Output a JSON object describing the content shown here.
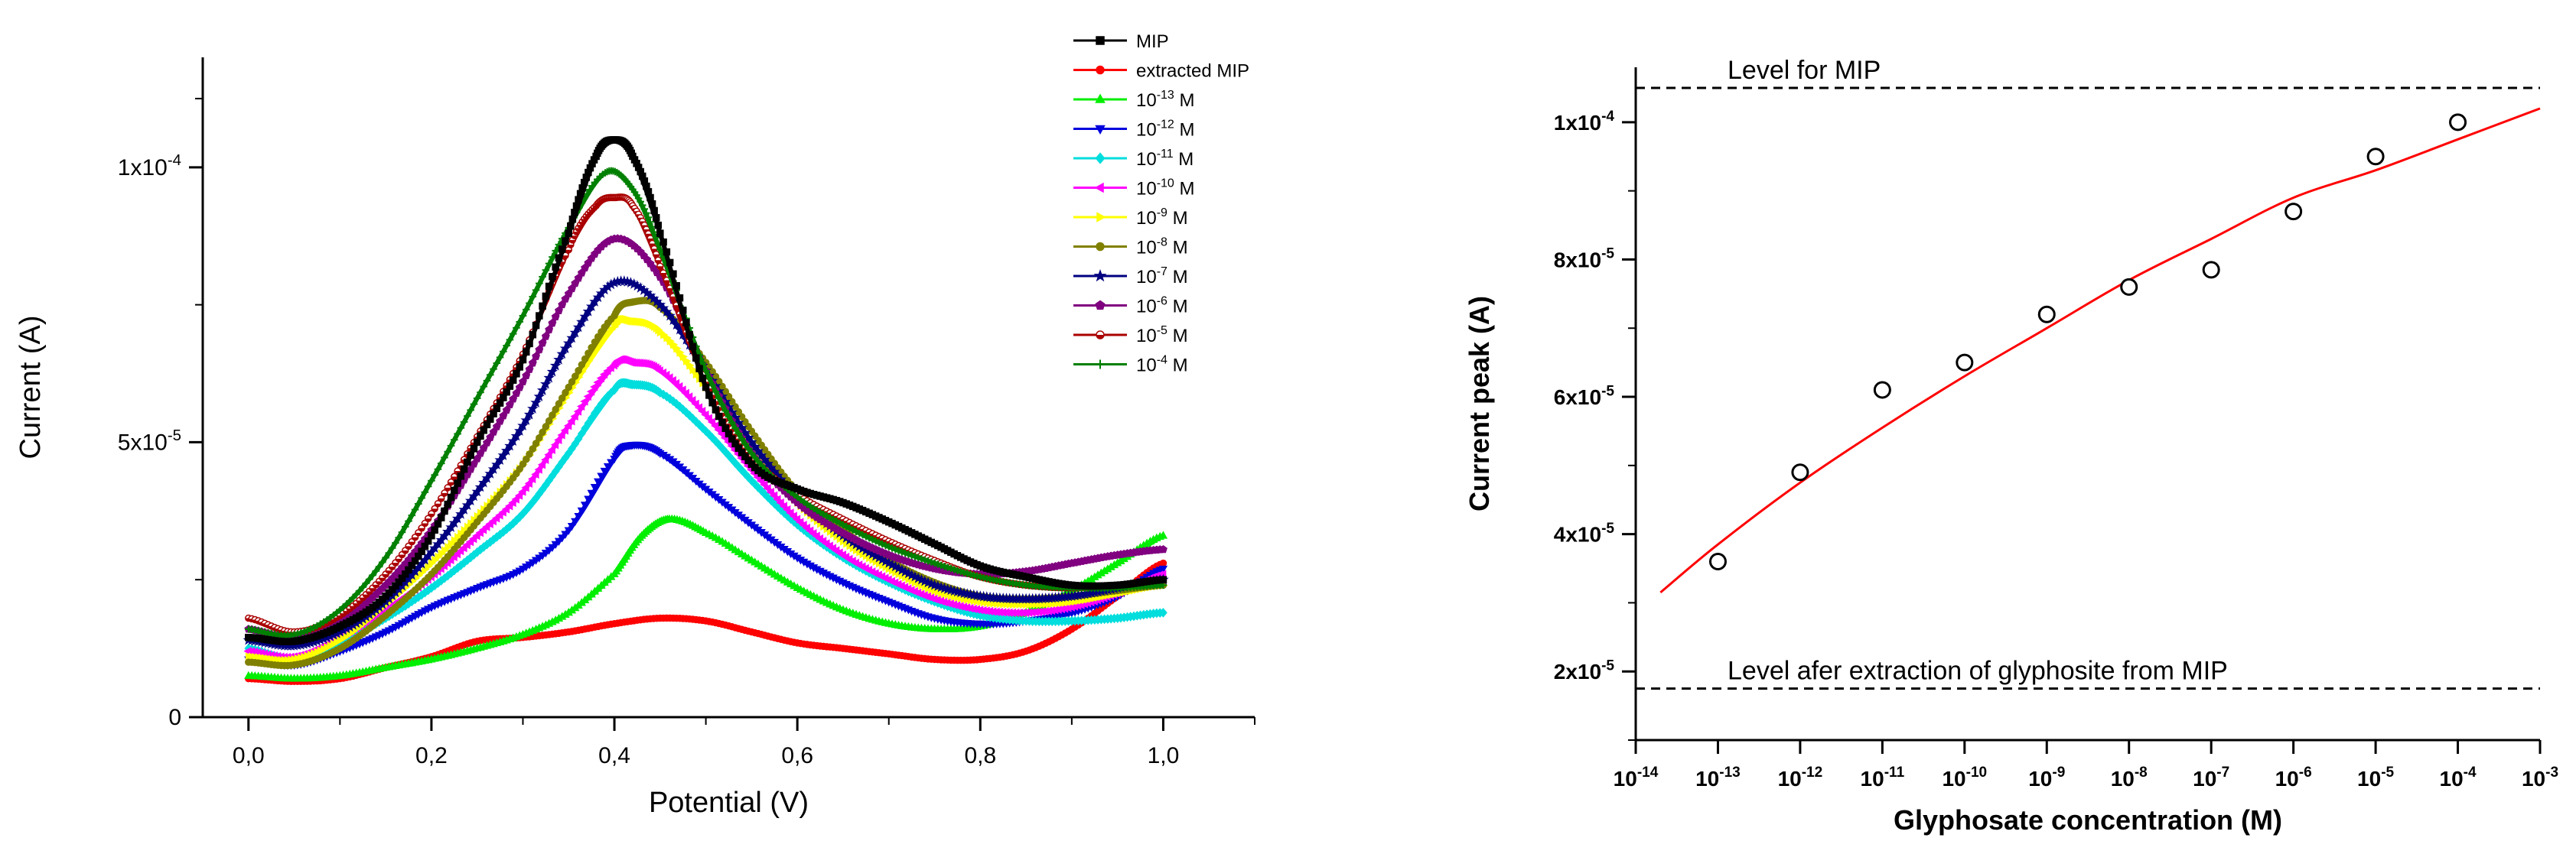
{
  "chart_data": [
    {
      "type": "line",
      "title": "",
      "xlabel": "Potential (V)",
      "ylabel": "Current (A)",
      "xlim": [
        -0.05,
        1.1
      ],
      "ylim": [
        0,
        0.00012
      ],
      "x_ticks": [
        {
          "value": 0.0,
          "label": "0,0"
        },
        {
          "value": 0.2,
          "label": "0,2"
        },
        {
          "value": 0.4,
          "label": "0,4"
        },
        {
          "value": 0.6,
          "label": "0,6"
        },
        {
          "value": 0.8,
          "label": "0,8"
        },
        {
          "value": 1.0,
          "label": "1,0"
        }
      ],
      "y_ticks": [
        {
          "value": 0,
          "label": "0"
        },
        {
          "value": 5e-05,
          "label": "5x10",
          "exp": "-5"
        },
        {
          "value": 0.0001,
          "label": "1x10",
          "exp": "-4"
        }
      ],
      "grid": false,
      "legend_position": "top-right",
      "series": [
        {
          "name": "MIP",
          "color": "#000000",
          "marker": "square",
          "x": [
            0.0,
            0.05,
            0.1,
            0.15,
            0.2,
            0.25,
            0.3,
            0.35,
            0.38,
            0.4,
            0.42,
            0.45,
            0.5,
            0.55,
            0.6,
            0.65,
            0.7,
            0.75,
            0.8,
            0.85,
            0.9,
            0.95,
            1.0
          ],
          "y": [
            1.45e-05,
            1.38e-05,
            1.65e-05,
            2.2e-05,
            3.3e-05,
            5e-05,
            6.5e-05,
            8.8e-05,
            0.000102,
            0.000105,
            0.000102,
            8.8e-05,
            6e-05,
            4.6e-05,
            4.15e-05,
            3.9e-05,
            3.55e-05,
            3.15e-05,
            2.75e-05,
            2.55e-05,
            2.4e-05,
            2.4e-05,
            2.5e-05
          ]
        },
        {
          "name": "extracted MIP",
          "color": "#ff0000",
          "marker": "circle",
          "x": [
            0.0,
            0.05,
            0.1,
            0.15,
            0.2,
            0.25,
            0.3,
            0.35,
            0.4,
            0.45,
            0.5,
            0.55,
            0.6,
            0.65,
            0.7,
            0.75,
            0.8,
            0.85,
            0.9,
            0.95,
            1.0
          ],
          "y": [
            7e-06,
            6.5e-06,
            7e-06,
            9e-06,
            1.1e-05,
            1.38e-05,
            1.45e-05,
            1.55e-05,
            1.7e-05,
            1.8e-05,
            1.75e-05,
            1.55e-05,
            1.35e-05,
            1.25e-05,
            1.15e-05,
            1.05e-05,
            1.05e-05,
            1.2e-05,
            1.6e-05,
            2.2e-05,
            2.8e-05
          ]
        },
        {
          "name": "10-13 M",
          "color": "#00ee00",
          "marker": "triangle-up",
          "x": [
            0.0,
            0.05,
            0.1,
            0.15,
            0.2,
            0.25,
            0.3,
            0.35,
            0.4,
            0.43,
            0.46,
            0.5,
            0.55,
            0.6,
            0.65,
            0.7,
            0.75,
            0.8,
            0.85,
            0.9,
            0.95,
            1.0
          ],
          "y": [
            7.5e-06,
            7e-06,
            7.5e-06,
            9e-06,
            1.05e-05,
            1.25e-05,
            1.5e-05,
            1.9e-05,
            2.6e-05,
            3.3e-05,
            3.6e-05,
            3.35e-05,
            2.85e-05,
            2.35e-05,
            1.95e-05,
            1.7e-05,
            1.6e-05,
            1.65e-05,
            1.9e-05,
            2.3e-05,
            2.8e-05,
            3.3e-05
          ]
        },
        {
          "name": "10-12 M",
          "color": "#0000dd",
          "marker": "triangle-down",
          "x": [
            0.0,
            0.05,
            0.1,
            0.15,
            0.2,
            0.25,
            0.3,
            0.35,
            0.4,
            0.42,
            0.45,
            0.5,
            0.55,
            0.6,
            0.65,
            0.7,
            0.75,
            0.8,
            0.85,
            0.9,
            0.95,
            1.0
          ],
          "y": [
            1.05e-05,
            9.5e-06,
            1.2e-05,
            1.55e-05,
            2e-05,
            2.35e-05,
            2.7e-05,
            3.4e-05,
            4.7e-05,
            4.95e-05,
            4.8e-05,
            4.15e-05,
            3.5e-05,
            2.9e-05,
            2.45e-05,
            2.1e-05,
            1.8e-05,
            1.7e-05,
            1.75e-05,
            1.9e-05,
            2.2e-05,
            2.7e-05
          ]
        },
        {
          "name": "10-11 M",
          "color": "#00dddd",
          "marker": "diamond",
          "x": [
            0.0,
            0.05,
            0.1,
            0.15,
            0.2,
            0.25,
            0.3,
            0.35,
            0.4,
            0.42,
            0.45,
            0.5,
            0.55,
            0.6,
            0.65,
            0.7,
            0.75,
            0.8,
            0.85,
            0.9,
            0.95,
            1.0
          ],
          "y": [
            1.25e-05,
            1.05e-05,
            1.35e-05,
            1.8e-05,
            2.35e-05,
            3e-05,
            3.7e-05,
            4.8e-05,
            5.95e-05,
            6.05e-05,
            5.9e-05,
            5.2e-05,
            4.3e-05,
            3.5e-05,
            2.9e-05,
            2.45e-05,
            2.1e-05,
            1.85e-05,
            1.75e-05,
            1.75e-05,
            1.8e-05,
            1.9e-05
          ]
        },
        {
          "name": "10-10 M",
          "color": "#ff00ff",
          "marker": "triangle-left",
          "x": [
            0.0,
            0.05,
            0.1,
            0.15,
            0.2,
            0.25,
            0.3,
            0.35,
            0.4,
            0.42,
            0.45,
            0.5,
            0.55,
            0.6,
            0.65,
            0.7,
            0.75,
            0.8,
            0.85,
            0.9,
            0.95,
            1.0
          ],
          "y": [
            1.2e-05,
            1.1e-05,
            1.45e-05,
            1.95e-05,
            2.55e-05,
            3.3e-05,
            4.1e-05,
            5.3e-05,
            6.4e-05,
            6.45e-05,
            6.3e-05,
            5.5e-05,
            4.5e-05,
            3.6e-05,
            2.95e-05,
            2.5e-05,
            2.15e-05,
            1.95e-05,
            1.9e-05,
            2e-05,
            2.25e-05,
            2.6e-05
          ]
        },
        {
          "name": "10-9 M",
          "color": "#ffff00",
          "marker": "triangle-right",
          "x": [
            0.0,
            0.05,
            0.1,
            0.15,
            0.2,
            0.25,
            0.3,
            0.35,
            0.4,
            0.42,
            0.45,
            0.5,
            0.55,
            0.6,
            0.65,
            0.7,
            0.75,
            0.8,
            0.85,
            0.9,
            0.95,
            1.0
          ],
          "y": [
            1.1e-05,
            1.05e-05,
            1.4e-05,
            2.05e-05,
            2.8e-05,
            3.65e-05,
            4.6e-05,
            5.9e-05,
            7.1e-05,
            7.2e-05,
            7e-05,
            6e-05,
            4.9e-05,
            3.9e-05,
            3.2e-05,
            2.7e-05,
            2.3e-05,
            2.1e-05,
            2.05e-05,
            2.1e-05,
            2.25e-05,
            2.4e-05
          ]
        },
        {
          "name": "10-8 M",
          "color": "#808000",
          "marker": "circle",
          "x": [
            0.0,
            0.05,
            0.1,
            0.15,
            0.2,
            0.25,
            0.3,
            0.35,
            0.4,
            0.42,
            0.45,
            0.5,
            0.55,
            0.6,
            0.65,
            0.7,
            0.75,
            0.8,
            0.85,
            0.9,
            0.95,
            1.0
          ],
          "y": [
            1e-05,
            9.5e-06,
            1.25e-05,
            1.85e-05,
            2.6e-05,
            3.55e-05,
            4.6e-05,
            6e-05,
            7.3e-05,
            7.55e-05,
            7.45e-05,
            6.45e-05,
            5.2e-05,
            4.1e-05,
            3.4e-05,
            2.85e-05,
            2.45e-05,
            2.2e-05,
            2.15e-05,
            2.2e-05,
            2.3e-05,
            2.4e-05
          ]
        },
        {
          "name": "10-7 M",
          "color": "#000080",
          "marker": "star",
          "x": [
            0.0,
            0.05,
            0.1,
            0.15,
            0.2,
            0.25,
            0.3,
            0.35,
            0.4,
            0.45,
            0.5,
            0.55,
            0.6,
            0.65,
            0.7,
            0.75,
            0.8,
            0.85,
            0.9,
            0.95,
            1.0
          ],
          "y": [
            1.4e-05,
            1.3e-05,
            1.55e-05,
            2.1e-05,
            3e-05,
            4.1e-05,
            5.3e-05,
            6.8e-05,
            7.9e-05,
            7.5e-05,
            6.3e-05,
            5e-05,
            4e-05,
            3.3e-05,
            2.8e-05,
            2.4e-05,
            2.2e-05,
            2.15e-05,
            2.2e-05,
            2.35e-05,
            2.5e-05
          ]
        },
        {
          "name": "10-6 M",
          "color": "#800080",
          "marker": "pentagon",
          "x": [
            0.0,
            0.05,
            0.1,
            0.15,
            0.2,
            0.25,
            0.3,
            0.35,
            0.4,
            0.45,
            0.5,
            0.55,
            0.6,
            0.65,
            0.7,
            0.75,
            0.8,
            0.85,
            0.9,
            0.95,
            1.0
          ],
          "y": [
            1.6e-05,
            1.45e-05,
            1.75e-05,
            2.4e-05,
            3.4e-05,
            4.7e-05,
            6.1e-05,
            7.7e-05,
            8.7e-05,
            8e-05,
            6.3e-05,
            4.8e-05,
            3.9e-05,
            3.35e-05,
            2.95e-05,
            2.7e-05,
            2.6e-05,
            2.65e-05,
            2.8e-05,
            2.95e-05,
            3.05e-05
          ]
        },
        {
          "name": "10-5 M",
          "color": "#aa0000",
          "marker": "half-circle",
          "x": [
            0.0,
            0.05,
            0.1,
            0.15,
            0.2,
            0.25,
            0.3,
            0.35,
            0.38,
            0.4,
            0.42,
            0.45,
            0.5,
            0.55,
            0.6,
            0.65,
            0.7,
            0.75,
            0.8,
            0.85,
            0.9,
            0.95,
            1.0
          ],
          "y": [
            1.8e-05,
            1.55e-05,
            1.85e-05,
            2.6e-05,
            3.7e-05,
            5.1e-05,
            6.6e-05,
            8.5e-05,
            9.3e-05,
            9.45e-05,
            9.3e-05,
            8.2e-05,
            6.1e-05,
            4.75e-05,
            4.05e-05,
            3.6e-05,
            3.2e-05,
            2.85e-05,
            2.55e-05,
            2.4e-05,
            2.35e-05,
            2.4e-05,
            2.5e-05
          ]
        },
        {
          "name": "10-4 M",
          "color": "#008000",
          "marker": "plus",
          "x": [
            0.0,
            0.05,
            0.1,
            0.15,
            0.2,
            0.25,
            0.3,
            0.35,
            0.39,
            0.42,
            0.45,
            0.5,
            0.55,
            0.6,
            0.65,
            0.7,
            0.75,
            0.8,
            0.85,
            0.9,
            0.95,
            1.0
          ],
          "y": [
            1.6e-05,
            1.5e-05,
            1.95e-05,
            2.9e-05,
            4.3e-05,
            5.8e-05,
            7.3e-05,
            8.9e-05,
            9.9e-05,
            9.6e-05,
            8.5e-05,
            6.3e-05,
            4.8e-05,
            4e-05,
            3.5e-05,
            3.1e-05,
            2.8e-05,
            2.55e-05,
            2.4e-05,
            2.35e-05,
            2.35e-05,
            2.4e-05
          ]
        }
      ]
    },
    {
      "type": "scatter",
      "title": "",
      "xlabel": "Glyphosate concentration (M)",
      "ylabel": "Current peak (A)",
      "xscale": "log",
      "xlim": [
        1e-14,
        0.001
      ],
      "ylim": [
        1e-05,
        0.000108
      ],
      "x_ticks": [
        {
          "value": 1e-14,
          "label": "10",
          "exp": "-14"
        },
        {
          "value": 1e-13,
          "label": "10",
          "exp": "-13"
        },
        {
          "value": 1e-12,
          "label": "10",
          "exp": "-12"
        },
        {
          "value": 1e-11,
          "label": "10",
          "exp": "-11"
        },
        {
          "value": 1e-10,
          "label": "10",
          "exp": "-10"
        },
        {
          "value": 1e-09,
          "label": "10",
          "exp": "-9"
        },
        {
          "value": 1e-08,
          "label": "10",
          "exp": "-8"
        },
        {
          "value": 1e-07,
          "label": "10",
          "exp": "-7"
        },
        {
          "value": 1e-06,
          "label": "10",
          "exp": "-6"
        },
        {
          "value": 1e-05,
          "label": "10",
          "exp": "-5"
        },
        {
          "value": 0.0001,
          "label": "10",
          "exp": "-4"
        },
        {
          "value": 0.001,
          "label": "10",
          "exp": "-3"
        }
      ],
      "y_ticks": [
        {
          "value": 2e-05,
          "label": "2x10",
          "exp": "-5"
        },
        {
          "value": 4e-05,
          "label": "4x10",
          "exp": "-5"
        },
        {
          "value": 6e-05,
          "label": "6x10",
          "exp": "-5"
        },
        {
          "value": 8e-05,
          "label": "8x10",
          "exp": "-5"
        },
        {
          "value": 0.0001,
          "label": "1x10",
          "exp": "-4"
        }
      ],
      "grid": false,
      "points": {
        "x": [
          1e-13,
          1e-12,
          1e-11,
          1e-10,
          1e-09,
          1e-08,
          1e-07,
          1e-06,
          1e-05,
          0.0001
        ],
        "y": [
          3.6e-05,
          4.9e-05,
          6.1e-05,
          6.5e-05,
          7.2e-05,
          7.6e-05,
          7.85e-05,
          8.7e-05,
          9.5e-05,
          0.0001
        ]
      },
      "fit": {
        "color": "#ff0000",
        "x": [
          2e-14,
          1e-13,
          1e-12,
          1e-11,
          1e-10,
          1e-09,
          1e-08,
          1e-07,
          1e-06,
          1e-05,
          0.0001,
          0.001
        ],
        "y": [
          3.15e-05,
          3.85e-05,
          4.75e-05,
          5.55e-05,
          6.3e-05,
          7e-05,
          7.7e-05,
          8.3e-05,
          8.9e-05,
          9.3e-05,
          9.75e-05,
          0.000102
        ]
      },
      "reference_lines": [
        {
          "y": 0.000105,
          "label": "Level for MIP"
        },
        {
          "y": 1.75e-05,
          "label": "Level afer extraction of glyphosite from MIP"
        }
      ]
    }
  ]
}
